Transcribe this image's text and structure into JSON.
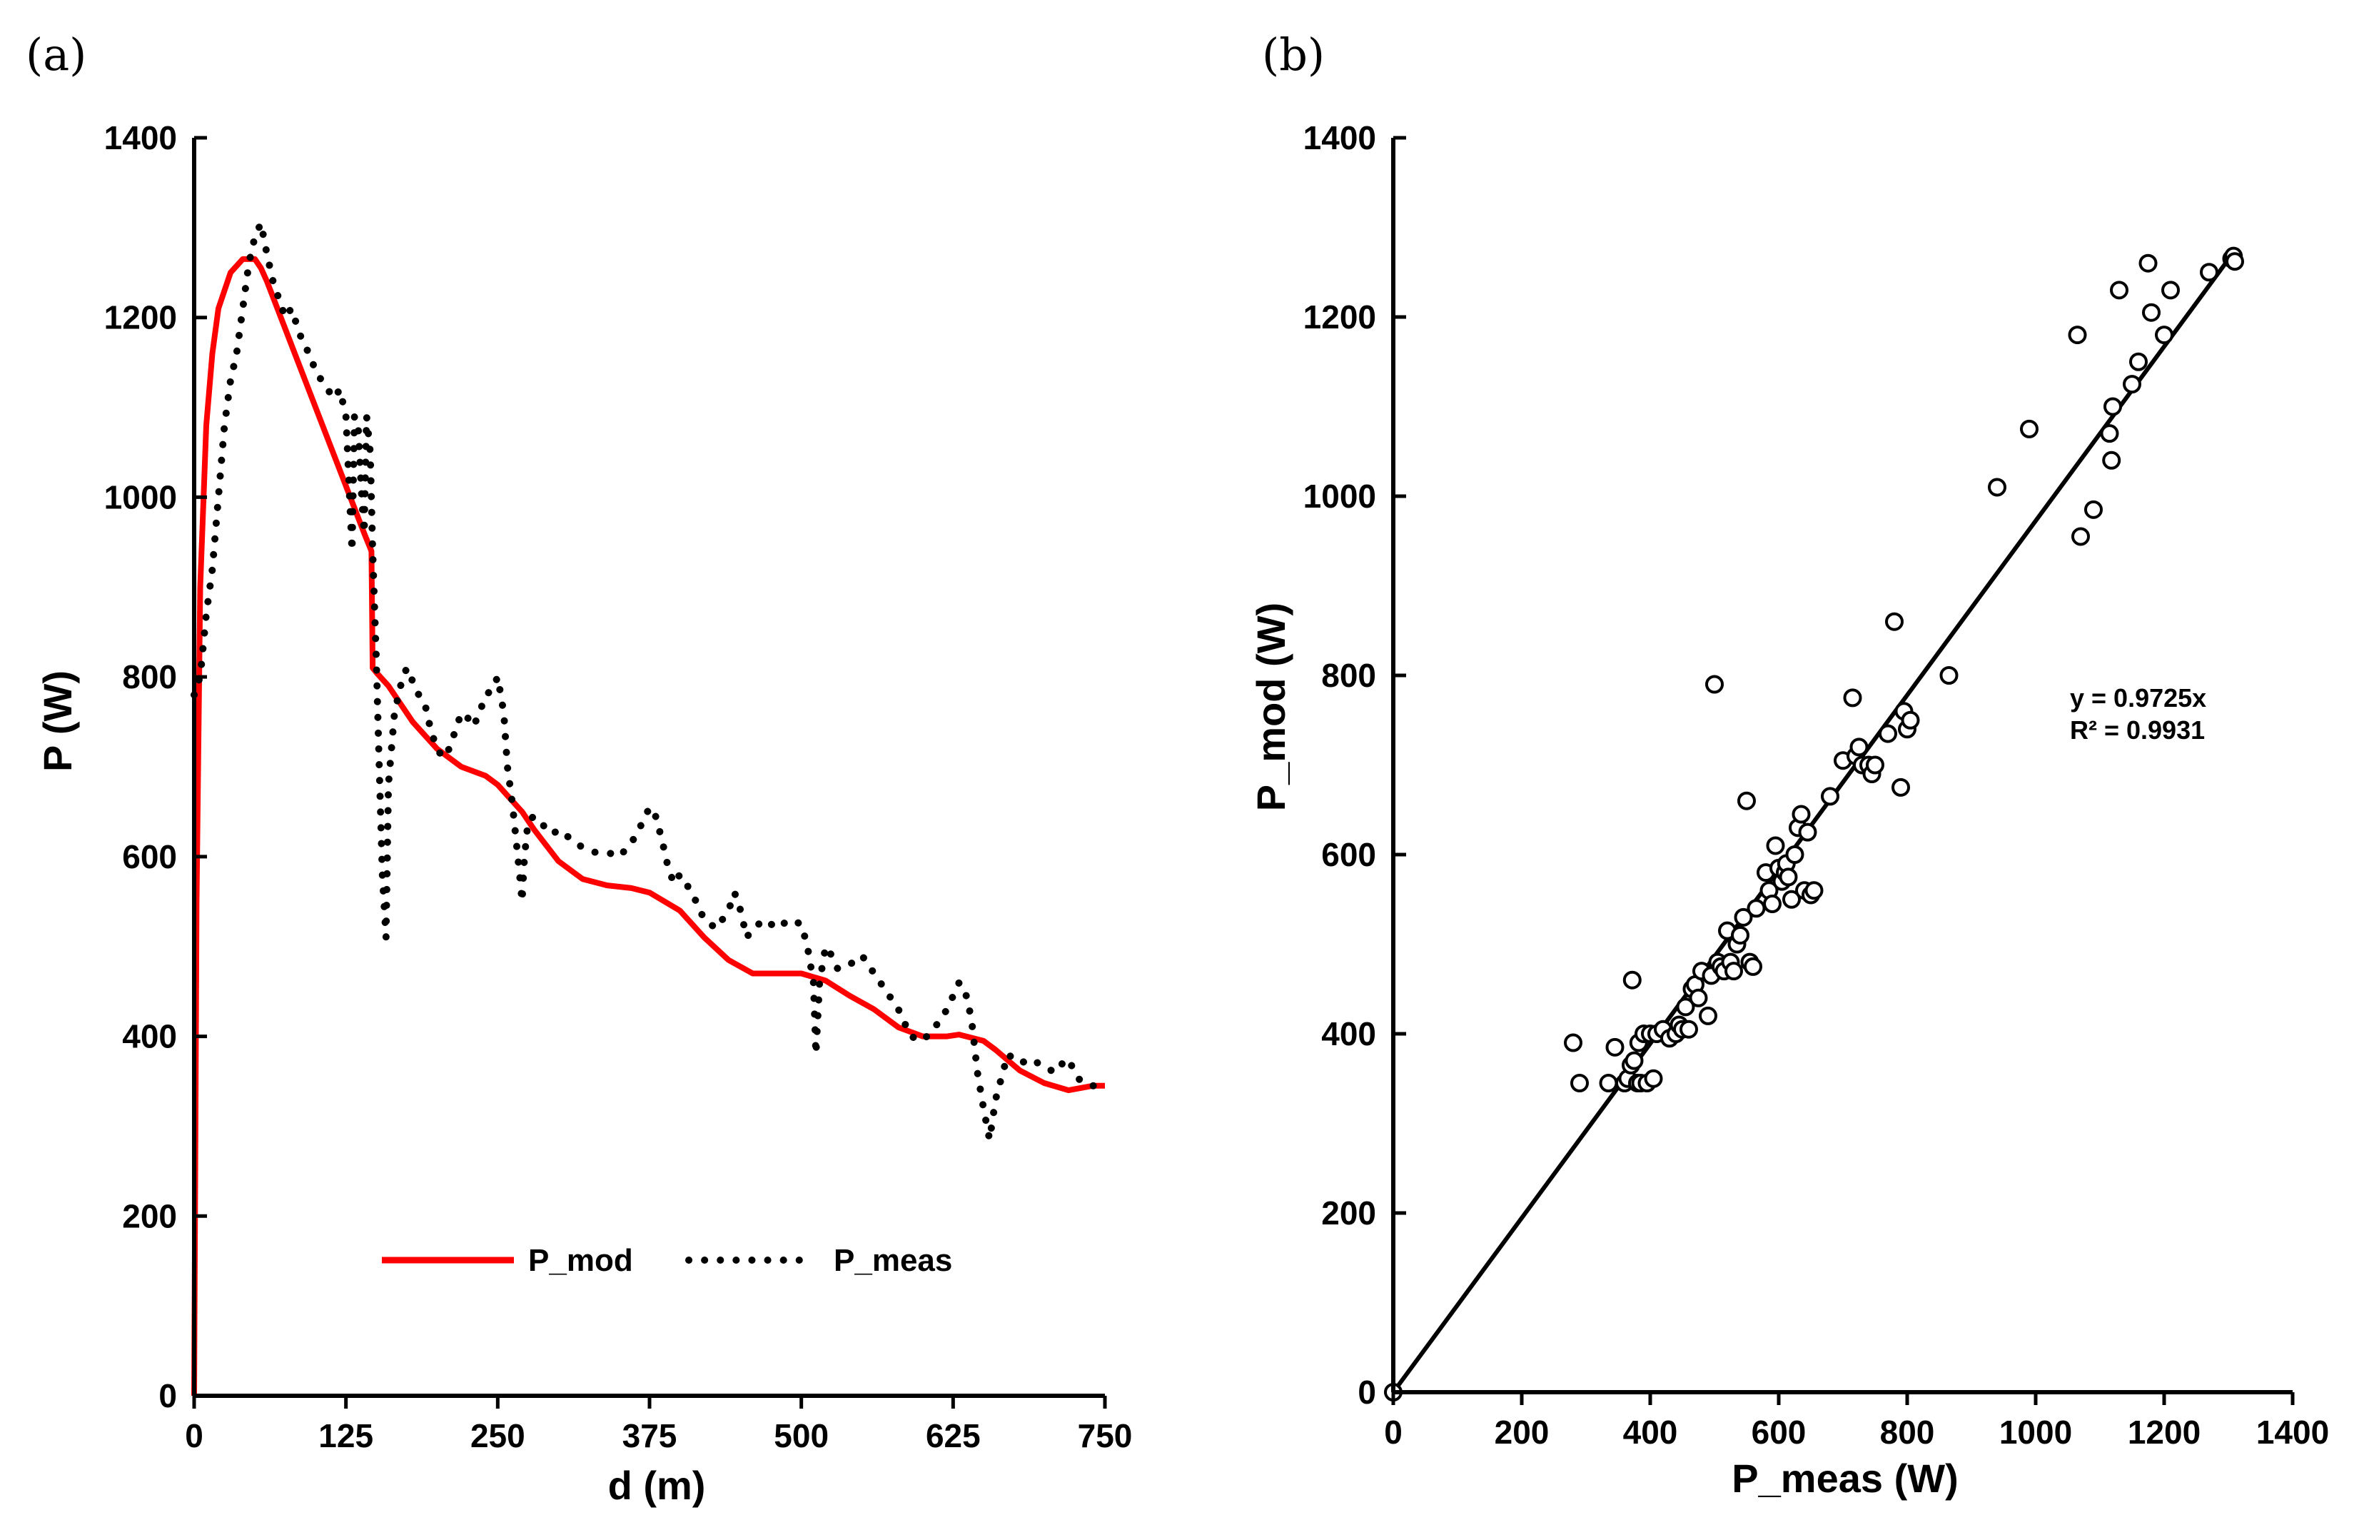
{
  "panel_labels": {
    "a": "(a)",
    "b": "(b)"
  },
  "colors": {
    "model": "#ff0000",
    "measured": "#000000",
    "axis": "#000000",
    "marker_fill": "#ffffff"
  },
  "chart_data": [
    {
      "id": "a",
      "type": "line",
      "title": "",
      "xlabel": "d (m)",
      "ylabel": "P (W)",
      "xlim": [
        0,
        750
      ],
      "ylim": [
        0,
        1400
      ],
      "xticks": [
        0,
        125,
        250,
        375,
        500,
        625,
        750
      ],
      "yticks": [
        0,
        200,
        400,
        600,
        800,
        1000,
        1200,
        1400
      ],
      "legend": {
        "placement": "bottom-center",
        "entries": [
          "P_mod",
          "P_meas"
        ]
      },
      "series": [
        {
          "name": "P_mod",
          "style": "solid",
          "x": [
            0,
            2,
            5,
            10,
            15,
            20,
            30,
            40,
            50,
            55,
            60,
            70,
            80,
            100,
            120,
            140,
            146,
            147,
            150,
            160,
            180,
            200,
            220,
            240,
            250,
            260,
            270,
            280,
            300,
            320,
            340,
            360,
            375,
            400,
            420,
            440,
            460,
            480,
            500,
            520,
            540,
            560,
            580,
            600,
            620,
            630,
            650,
            660,
            680,
            700,
            720,
            740,
            750
          ],
          "values": [
            0,
            550,
            900,
            1080,
            1160,
            1210,
            1250,
            1265,
            1265,
            1255,
            1240,
            1205,
            1170,
            1100,
            1030,
            960,
            940,
            810,
            805,
            790,
            750,
            720,
            700,
            690,
            680,
            665,
            650,
            630,
            595,
            575,
            568,
            565,
            560,
            540,
            510,
            485,
            470,
            470,
            470,
            462,
            445,
            430,
            410,
            400,
            400,
            402,
            395,
            385,
            362,
            348,
            340,
            345,
            345
          ]
        },
        {
          "name": "P_meas",
          "style": "dotted",
          "x": [
            0,
            2,
            5,
            10,
            15,
            20,
            25,
            30,
            35,
            40,
            45,
            50,
            55,
            60,
            65,
            70,
            75,
            80,
            85,
            90,
            95,
            100,
            105,
            110,
            115,
            120,
            125,
            128,
            130,
            132,
            135,
            138,
            140,
            142,
            145,
            147,
            150,
            152,
            155,
            158,
            160,
            165,
            170,
            175,
            180,
            185,
            190,
            195,
            200,
            205,
            210,
            215,
            220,
            225,
            230,
            235,
            240,
            245,
            250,
            255,
            258,
            262,
            265,
            268,
            270,
            272,
            275,
            280,
            285,
            290,
            295,
            300,
            310,
            320,
            330,
            340,
            350,
            360,
            370,
            375,
            380,
            385,
            390,
            395,
            400,
            410,
            420,
            430,
            440,
            445,
            450,
            455,
            460,
            465,
            470,
            480,
            490,
            500,
            505,
            510,
            512,
            515,
            520,
            525,
            530,
            540,
            550,
            560,
            570,
            580,
            590,
            600,
            610,
            620,
            630,
            635,
            640,
            645,
            650,
            655,
            660,
            670,
            680,
            690,
            700,
            710,
            715,
            720,
            725,
            730,
            740,
            750
          ],
          "values": [
            780,
            790,
            800,
            870,
            920,
            1000,
            1080,
            1130,
            1160,
            1210,
            1260,
            1290,
            1305,
            1270,
            1240,
            1220,
            1200,
            1210,
            1190,
            1170,
            1160,
            1140,
            1130,
            1120,
            1110,
            1120,
            1090,
            1000,
            940,
            1090,
            1080,
            1000,
            960,
            1090,
            1050,
            940,
            820,
            720,
            580,
            510,
            680,
            760,
            790,
            810,
            795,
            780,
            770,
            740,
            720,
            710,
            720,
            740,
            760,
            755,
            745,
            760,
            780,
            785,
            800,
            760,
            700,
            660,
            620,
            580,
            550,
            600,
            640,
            645,
            640,
            630,
            625,
            630,
            620,
            610,
            605,
            605,
            600,
            615,
            640,
            655,
            645,
            620,
            590,
            570,
            580,
            560,
            530,
            520,
            540,
            560,
            540,
            510,
            520,
            525,
            530,
            520,
            530,
            525,
            500,
            460,
            380,
            460,
            500,
            490,
            475,
            480,
            490,
            470,
            450,
            430,
            400,
            395,
            410,
            430,
            460,
            450,
            420,
            360,
            320,
            285,
            330,
            380,
            370,
            375,
            365,
            360,
            370,
            375,
            360,
            350,
            345,
            345
          ]
        }
      ]
    },
    {
      "id": "b",
      "type": "scatter",
      "title": "",
      "xlabel": "P_meas (W)",
      "ylabel": "P_mod (W)",
      "xlim": [
        0,
        1400
      ],
      "ylim": [
        0,
        1400
      ],
      "xticks": [
        0,
        200,
        400,
        600,
        800,
        1000,
        1200,
        1400
      ],
      "yticks": [
        0,
        200,
        400,
        600,
        800,
        1000,
        1200,
        1400
      ],
      "annotation": {
        "equation": "y = 0.9725x",
        "r_squared": "R² = 0.9931"
      },
      "trendline": {
        "slope": 0.9725,
        "x": [
          0,
          1305
        ]
      },
      "points": {
        "x": [
          0,
          280,
          290,
          335,
          345,
          360,
          365,
          370,
          372,
          375,
          380,
          382,
          385,
          390,
          395,
          400,
          405,
          410,
          420,
          430,
          440,
          445,
          450,
          455,
          460,
          465,
          470,
          475,
          480,
          490,
          495,
          500,
          505,
          510,
          515,
          520,
          525,
          530,
          535,
          540,
          545,
          550,
          555,
          560,
          565,
          580,
          585,
          590,
          595,
          600,
          605,
          610,
          612,
          615,
          620,
          625,
          630,
          635,
          640,
          645,
          650,
          655,
          680,
          700,
          715,
          720,
          725,
          730,
          740,
          745,
          750,
          770,
          780,
          790,
          795,
          800,
          805,
          865,
          940,
          990,
          1065,
          1070,
          1090,
          1115,
          1118,
          1120,
          1130,
          1150,
          1160,
          1175,
          1180,
          1200,
          1210,
          1270,
          1305,
          1308,
          1310
        ],
        "y": [
          0,
          390,
          345,
          345,
          385,
          345,
          350,
          365,
          460,
          370,
          345,
          390,
          345,
          400,
          345,
          400,
          350,
          400,
          405,
          395,
          400,
          410,
          405,
          430,
          405,
          450,
          455,
          440,
          470,
          420,
          465,
          790,
          480,
          475,
          470,
          515,
          480,
          470,
          500,
          510,
          530,
          660,
          480,
          475,
          540,
          580,
          560,
          545,
          610,
          585,
          570,
          580,
          590,
          575,
          550,
          600,
          630,
          645,
          560,
          625,
          555,
          560,
          665,
          705,
          775,
          710,
          720,
          700,
          700,
          690,
          700,
          735,
          860,
          675,
          760,
          740,
          750,
          800,
          1010,
          1075,
          1180,
          955,
          985,
          1070,
          1040,
          1100,
          1230,
          1125,
          1150,
          1260,
          1205,
          1180,
          1230,
          1250,
          1265,
          1268,
          1262
        ]
      }
    }
  ]
}
